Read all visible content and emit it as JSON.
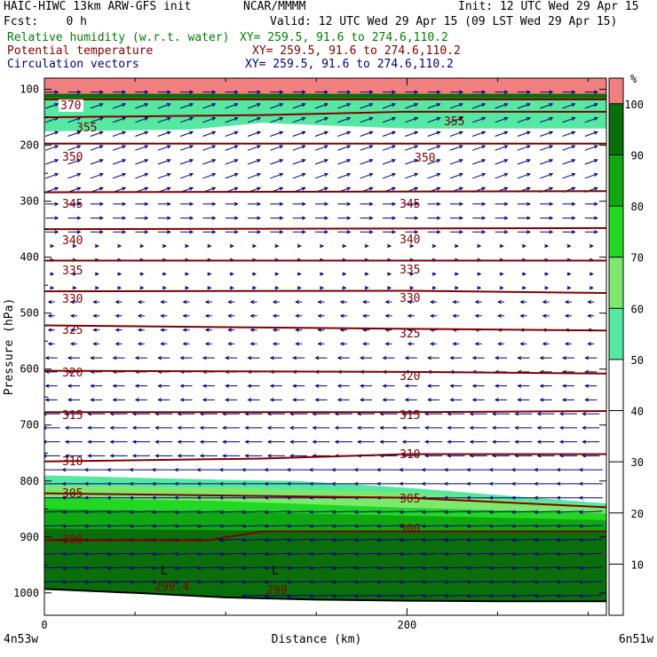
{
  "header": {
    "model": "HAIC-HIWC 13km ARW-GFS init",
    "org": "NCAR/MMMM",
    "init": "Init: 12 UTC Wed 29 Apr 15",
    "fcst": "Fcst:    0 h",
    "valid": "Valid: 12 UTC Wed 29 Apr 15 (09 LST Wed 29 Apr 15)",
    "fields": [
      {
        "name": "Relative humidity (w.r.t. water)",
        "xy": "XY= 259.5, 91.6 to 274.6,110.2",
        "color": "#008000"
      },
      {
        "name": "Potential temperature",
        "xy": "XY= 259.5, 91.6 to 274.6,110.2",
        "color": "#800000"
      },
      {
        "name": "Circulation vectors",
        "xy": "XY= 259.5, 91.6 to 274.6,110.2",
        "color": "#000080"
      }
    ]
  },
  "chart_data": {
    "type": "cross-section",
    "xlabel": "Distance (km)",
    "ylabel": "Pressure (hPa)",
    "xlim": [
      0,
      310
    ],
    "ylim": [
      1040,
      80
    ],
    "x_ticks": [
      0,
      200
    ],
    "y_ticks": [
      100,
      200,
      300,
      400,
      500,
      600,
      700,
      800,
      900,
      1000
    ],
    "x_end_labels": {
      "left": "4n53w",
      "right": "6n51w"
    },
    "colorbar": {
      "unit": "%",
      "ticks": [
        10,
        20,
        30,
        40,
        50,
        60,
        70,
        80,
        90,
        100
      ],
      "levels": [
        {
          "from": 50,
          "to": 60,
          "color": "#55e8a0"
        },
        {
          "from": 60,
          "to": 70,
          "color": "#7ce86c"
        },
        {
          "from": 70,
          "to": 80,
          "color": "#22d822"
        },
        {
          "from": 80,
          "to": 90,
          "color": "#10a810"
        },
        {
          "from": 90,
          "to": 100,
          "color": "#0a6e0a"
        },
        {
          "from": 100,
          "to": 105,
          "color": "#f08080"
        }
      ]
    },
    "theta_contours": [
      {
        "label": "370",
        "x": [
          0,
          310
        ],
        "p": [
          118,
          118
        ]
      },
      {
        "label": "355",
        "x": [
          0,
          120,
          200,
          310
        ],
        "p": [
          150,
          146,
          140,
          140
        ]
      },
      {
        "label": "350",
        "x": [
          0,
          310
        ],
        "p": [
          197,
          197
        ]
      },
      {
        "label": "345",
        "x": [
          0,
          310
        ],
        "p": [
          284,
          282
        ]
      },
      {
        "label": "340",
        "x": [
          0,
          310
        ],
        "p": [
          350,
          348
        ]
      },
      {
        "label": "335",
        "x": [
          0,
          310
        ],
        "p": [
          406,
          406
        ]
      },
      {
        "label": "330",
        "x": [
          0,
          200,
          310
        ],
        "p": [
          461,
          460,
          464
        ]
      },
      {
        "label": "325",
        "x": [
          0,
          200,
          310
        ],
        "p": [
          522,
          528,
          531
        ]
      },
      {
        "label": "320",
        "x": [
          0,
          200,
          310
        ],
        "p": [
          603,
          605,
          608
        ]
      },
      {
        "label": "315",
        "x": [
          0,
          200,
          310
        ],
        "p": [
          677,
          677,
          675
        ]
      },
      {
        "label": "310",
        "x": [
          0,
          120,
          200,
          310
        ],
        "p": [
          765,
          760,
          752,
          752
        ]
      },
      {
        "label": "305",
        "x": [
          0,
          200,
          310
        ],
        "p": [
          822,
          830,
          847
        ]
      },
      {
        "label": "300",
        "x": [
          0,
          90,
          120,
          200,
          310
        ],
        "p": [
          906,
          906,
          890,
          890,
          890
        ]
      },
      {
        "label": "299.4",
        "x": [],
        "p": []
      },
      {
        "label": "299",
        "x": [],
        "p": []
      }
    ],
    "terrain": {
      "x": [
        0,
        50,
        100,
        150,
        200,
        250,
        310
      ],
      "p": [
        993,
        1000,
        1008,
        1012,
        1014,
        1015,
        1015
      ]
    },
    "rh_top": [
      {
        "level": "100+",
        "x": [
          0,
          310
        ],
        "p_bottom": [
          108,
          108
        ]
      },
      {
        "level": "90-100",
        "x": [
          0,
          310
        ],
        "p_bottom": [
          116,
          116
        ]
      },
      {
        "level": "50-60",
        "x": [
          0,
          80,
          120,
          160,
          200,
          310
        ],
        "p_bottom": [
          175,
          172,
          160,
          165,
          170,
          170
        ]
      }
    ],
    "rh_bottom": [
      {
        "level": "50-60",
        "x": [
          0,
          100,
          140,
          200,
          250,
          310
        ],
        "p_top": [
          790,
          798,
          800,
          812,
          825,
          840
        ]
      },
      {
        "level": "60-70",
        "x": [
          0,
          100,
          200,
          310
        ],
        "p_top": [
          808,
          812,
          820,
          848
        ]
      },
      {
        "level": "70-80",
        "x": [
          0,
          100,
          200,
          310
        ],
        "p_top": [
          830,
          836,
          848,
          858
        ]
      },
      {
        "level": "80-90",
        "x": [
          0,
          100,
          200,
          310
        ],
        "p_top": [
          850,
          855,
          862,
          870
        ]
      },
      {
        "level": "90-100",
        "x": [
          0,
          100,
          200,
          310
        ],
        "p_top": [
          885,
          888,
          890,
          892
        ]
      }
    ]
  }
}
